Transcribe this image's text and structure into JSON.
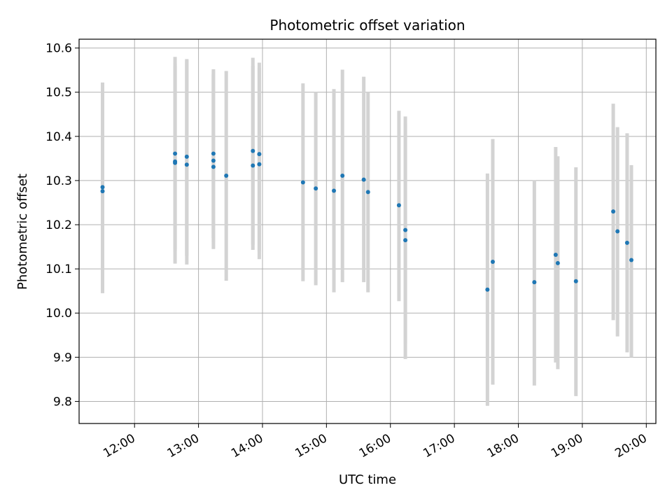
{
  "chart_data": {
    "type": "scatter",
    "title": "Photometric offset variation",
    "xlabel": "UTC time",
    "ylabel": "Photometric offset",
    "xlim": [
      "11:08",
      "20:09"
    ],
    "ylim": [
      9.75,
      10.62
    ],
    "grid": true,
    "x_ticks": [
      "12:00",
      "13:00",
      "14:00",
      "15:00",
      "16:00",
      "17:00",
      "18:00",
      "19:00",
      "20:00"
    ],
    "y_ticks": [
      "9.8",
      "9.9",
      "10.0",
      "10.1",
      "10.2",
      "10.3",
      "10.4",
      "10.5",
      "10.6"
    ],
    "marker_color": "#1f77b4",
    "errorbar_color": "#d3d3d3",
    "points": [
      {
        "x": "11:30",
        "y": 10.285,
        "ylow": 10.045,
        "yhigh": 10.522
      },
      {
        "x": "11:30",
        "y": 10.276,
        "ylow": 10.052,
        "yhigh": 10.508
      },
      {
        "x": "12:38",
        "y": 10.361,
        "ylow": 10.112,
        "yhigh": 10.58
      },
      {
        "x": "12:38",
        "y": 10.343,
        "ylow": 10.14,
        "yhigh": 10.565
      },
      {
        "x": "12:38",
        "y": 10.34,
        "ylow": 10.145,
        "yhigh": 10.56
      },
      {
        "x": "12:49",
        "y": 10.354,
        "ylow": 10.11,
        "yhigh": 10.575
      },
      {
        "x": "12:49",
        "y": 10.336,
        "ylow": 10.13,
        "yhigh": 10.572
      },
      {
        "x": "13:14",
        "y": 10.361,
        "ylow": 10.145,
        "yhigh": 10.552
      },
      {
        "x": "13:14",
        "y": 10.345,
        "ylow": 10.16,
        "yhigh": 10.548
      },
      {
        "x": "13:14",
        "y": 10.331,
        "ylow": 10.17,
        "yhigh": 10.54
      },
      {
        "x": "13:26",
        "y": 10.311,
        "ylow": 10.073,
        "yhigh": 10.548
      },
      {
        "x": "13:51",
        "y": 10.367,
        "ylow": 10.143,
        "yhigh": 10.578
      },
      {
        "x": "13:51",
        "y": 10.334,
        "ylow": 10.155,
        "yhigh": 10.56
      },
      {
        "x": "13:57",
        "y": 10.36,
        "ylow": 10.122,
        "yhigh": 10.567
      },
      {
        "x": "13:57",
        "y": 10.337,
        "ylow": 10.14,
        "yhigh": 10.555
      },
      {
        "x": "14:38",
        "y": 10.296,
        "ylow": 10.072,
        "yhigh": 10.52
      },
      {
        "x": "14:50",
        "y": 10.282,
        "ylow": 10.063,
        "yhigh": 10.5
      },
      {
        "x": "15:07",
        "y": 10.277,
        "ylow": 10.047,
        "yhigh": 10.507
      },
      {
        "x": "15:15",
        "y": 10.311,
        "ylow": 10.07,
        "yhigh": 10.551
      },
      {
        "x": "15:35",
        "y": 10.302,
        "ylow": 10.07,
        "yhigh": 10.535
      },
      {
        "x": "15:39",
        "y": 10.274,
        "ylow": 10.047,
        "yhigh": 10.5
      },
      {
        "x": "16:08",
        "y": 10.244,
        "ylow": 10.027,
        "yhigh": 10.458
      },
      {
        "x": "16:14",
        "y": 10.188,
        "ylow": 9.896,
        "yhigh": 10.445
      },
      {
        "x": "16:14",
        "y": 10.165,
        "ylow": 9.93,
        "yhigh": 10.43
      },
      {
        "x": "17:31",
        "y": 10.053,
        "ylow": 9.79,
        "yhigh": 10.316
      },
      {
        "x": "17:36",
        "y": 10.116,
        "ylow": 9.838,
        "yhigh": 10.394
      },
      {
        "x": "18:15",
        "y": 10.07,
        "ylow": 9.836,
        "yhigh": 10.301
      },
      {
        "x": "18:35",
        "y": 10.132,
        "ylow": 9.888,
        "yhigh": 10.376
      },
      {
        "x": "18:37",
        "y": 10.113,
        "ylow": 9.873,
        "yhigh": 10.355
      },
      {
        "x": "18:54",
        "y": 10.072,
        "ylow": 9.812,
        "yhigh": 10.33
      },
      {
        "x": "19:29",
        "y": 10.23,
        "ylow": 9.984,
        "yhigh": 10.474
      },
      {
        "x": "19:33",
        "y": 10.185,
        "ylow": 9.947,
        "yhigh": 10.421
      },
      {
        "x": "19:42",
        "y": 10.159,
        "ylow": 9.911,
        "yhigh": 10.407
      },
      {
        "x": "19:46",
        "y": 10.12,
        "ylow": 9.9,
        "yhigh": 10.335
      }
    ]
  }
}
